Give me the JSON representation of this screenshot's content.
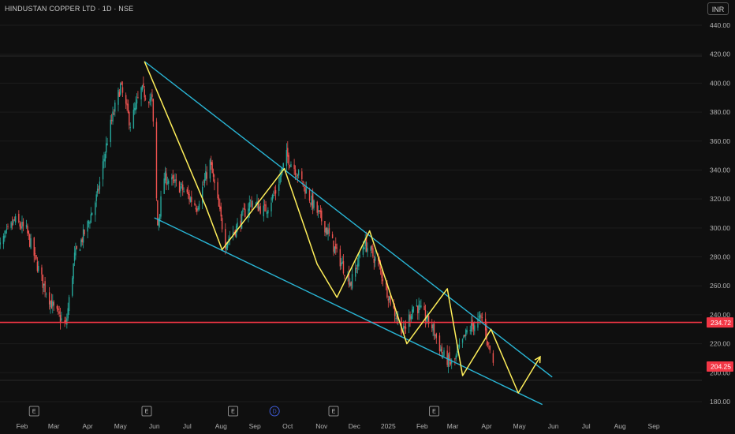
{
  "title": "HINDUSTAN COPPER LTD · 1D · NSE",
  "currency": "INR",
  "chart_data": {
    "type": "candlestick",
    "ylim": [
      178,
      442
    ],
    "y_ticks": [
      "440.00",
      "420.00",
      "400.00",
      "380.00",
      "360.00",
      "340.00",
      "320.00",
      "300.00",
      "280.00",
      "260.00",
      "240.00",
      "220.00",
      "200.00",
      "180.00"
    ],
    "x_ticks": [
      "Feb",
      "Mar",
      "Apr",
      "May",
      "Jun",
      "Jul",
      "Aug",
      "Sep",
      "Oct",
      "Nov",
      "Dec",
      "2025",
      "Feb",
      "Mar",
      "Apr",
      "May",
      "Jun",
      "Jul",
      "Aug",
      "Sep"
    ],
    "x_tick_dates": [
      "2024-02-01",
      "2024-03-01",
      "2024-04-01",
      "2024-05-01",
      "2024-06-01",
      "2024-07-01",
      "2024-08-01",
      "2024-09-01",
      "2024-10-01",
      "2024-11-01",
      "2024-12-01",
      "2025-01-01",
      "2025-02-01",
      "2025-03-01",
      "2025-04-01",
      "2025-05-01",
      "2025-06-01",
      "2025-07-01",
      "2025-08-01",
      "2025-09-01"
    ],
    "close_path": [
      [
        "2024-01-10",
        285
      ],
      [
        "2024-01-25",
        305
      ],
      [
        "2024-02-05",
        298
      ],
      [
        "2024-02-20",
        262
      ],
      [
        "2024-03-01",
        244
      ],
      [
        "2024-03-12",
        232
      ],
      [
        "2024-03-20",
        280
      ],
      [
        "2024-04-01",
        302
      ],
      [
        "2024-04-10",
        323
      ],
      [
        "2024-04-20",
        365
      ],
      [
        "2024-05-01",
        398
      ],
      [
        "2024-05-10",
        372
      ],
      [
        "2024-05-20",
        395
      ],
      [
        "2024-05-30",
        388
      ],
      [
        "2024-06-04",
        302
      ],
      [
        "2024-06-10",
        335
      ],
      [
        "2024-06-25",
        328
      ],
      [
        "2024-07-10",
        315
      ],
      [
        "2024-07-22",
        345
      ],
      [
        "2024-08-05",
        290
      ],
      [
        "2024-08-15",
        300
      ],
      [
        "2024-08-28",
        318
      ],
      [
        "2024-09-10",
        312
      ],
      [
        "2024-09-20",
        325
      ],
      [
        "2024-09-30",
        350
      ],
      [
        "2024-10-10",
        338
      ],
      [
        "2024-10-25",
        315
      ],
      [
        "2024-11-05",
        300
      ],
      [
        "2024-11-15",
        282
      ],
      [
        "2024-11-28",
        262
      ],
      [
        "2024-12-10",
        290
      ],
      [
        "2024-12-23",
        275
      ],
      [
        "2025-01-05",
        245
      ],
      [
        "2025-01-15",
        228
      ],
      [
        "2025-01-25",
        248
      ],
      [
        "2025-02-10",
        232
      ],
      [
        "2025-02-20",
        212
      ],
      [
        "2025-03-01",
        205
      ],
      [
        "2025-03-15",
        230
      ],
      [
        "2025-03-28",
        238
      ],
      [
        "2025-04-07",
        206
      ]
    ],
    "events": [
      {
        "date": "2024-02-12",
        "label": "E"
      },
      {
        "date": "2024-05-25",
        "label": "E"
      },
      {
        "date": "2024-08-12",
        "label": "E"
      },
      {
        "date": "2024-09-19",
        "label": "D"
      },
      {
        "date": "2024-11-12",
        "label": "E"
      },
      {
        "date": "2025-02-12",
        "label": "E"
      }
    ],
    "channel_upper": [
      [
        "2024-05-23",
        415
      ],
      [
        "2025-05-31",
        197
      ]
    ],
    "channel_lower": [
      [
        "2024-06-01",
        307
      ],
      [
        "2025-05-22",
        178
      ]
    ],
    "zigzag": [
      [
        "2024-05-23",
        415
      ],
      [
        "2024-07-18",
        315
      ],
      [
        "2024-08-02",
        285
      ],
      [
        "2024-09-28",
        341
      ],
      [
        "2024-10-28",
        275
      ],
      [
        "2024-11-15",
        252
      ],
      [
        "2024-12-15",
        298
      ],
      [
        "2025-01-18",
        220
      ],
      [
        "2025-02-24",
        258
      ],
      [
        "2025-03-10",
        198
      ],
      [
        "2025-04-05",
        230
      ],
      [
        "2025-04-30",
        186
      ],
      [
        "2025-05-20",
        211
      ]
    ],
    "support": {
      "value": 234.72,
      "label": "234.72"
    },
    "last_price": {
      "value": 204.25,
      "label": "204.25"
    },
    "colors": {
      "up": "#26a69a",
      "down": "#ef5350",
      "channel": "#29b6d6",
      "zigzag": "#ffef5a",
      "support": "#f23645",
      "price_tag": "#f23645"
    }
  }
}
